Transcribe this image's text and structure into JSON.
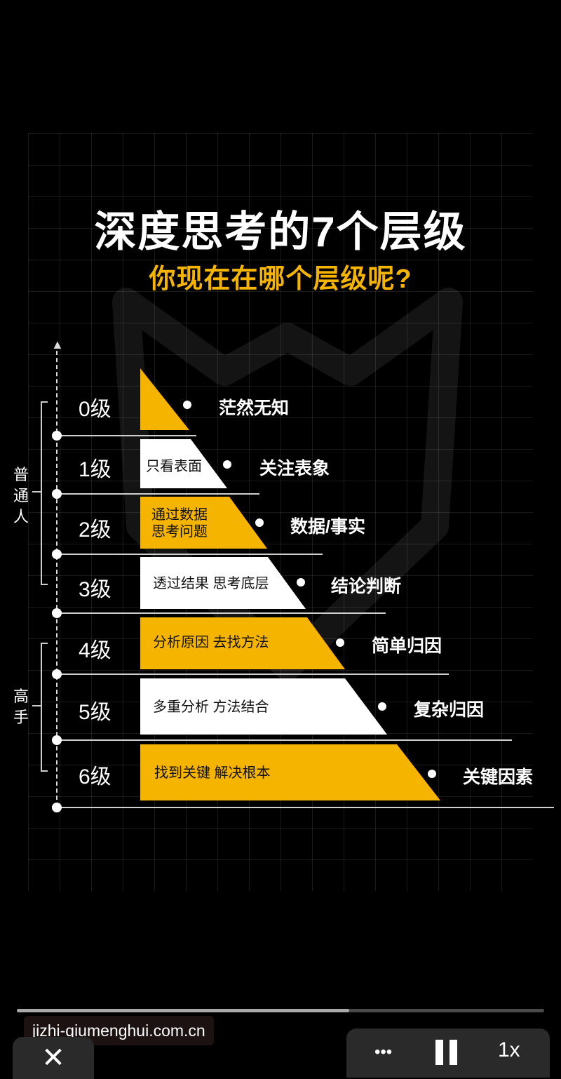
{
  "title": "深度思考的7个层级",
  "subtitle": "你现在在哪个层级呢?",
  "colors": {
    "accent": "#f5b400",
    "light": "#ffffff",
    "background": "#000000"
  },
  "levels": [
    {
      "label": "0级",
      "text": "",
      "text2": "",
      "desc": "茫然无知",
      "fill": "accent"
    },
    {
      "label": "1级",
      "text": "只看表面",
      "text2": "",
      "desc": "关注表象",
      "fill": "light"
    },
    {
      "label": "2级",
      "text": "通过数据",
      "text2": "思考问题",
      "desc": "数据/事实",
      "fill": "accent"
    },
    {
      "label": "3级",
      "text": "透过结果 思考底层",
      "text2": "",
      "desc": "结论判断",
      "fill": "light"
    },
    {
      "label": "4级",
      "text": "分析原因 去找方法",
      "text2": "",
      "desc": "简单归因",
      "fill": "accent"
    },
    {
      "label": "5级",
      "text": "多重分析 方法结合",
      "text2": "",
      "desc": "复杂归因",
      "fill": "light"
    },
    {
      "label": "6级",
      "text": "找到关键 解决根本",
      "text2": "",
      "desc": "关键因素",
      "fill": "accent"
    }
  ],
  "groups": {
    "normal": {
      "chars": [
        "普",
        "通",
        "人"
      ]
    },
    "expert": {
      "chars": [
        "高",
        "手"
      ]
    }
  },
  "player": {
    "url": "jizhi-qiumenghui.com.cn",
    "progress": 0.63,
    "close_icon": "close-icon",
    "more_label": "•••",
    "speed_label": "1x"
  }
}
